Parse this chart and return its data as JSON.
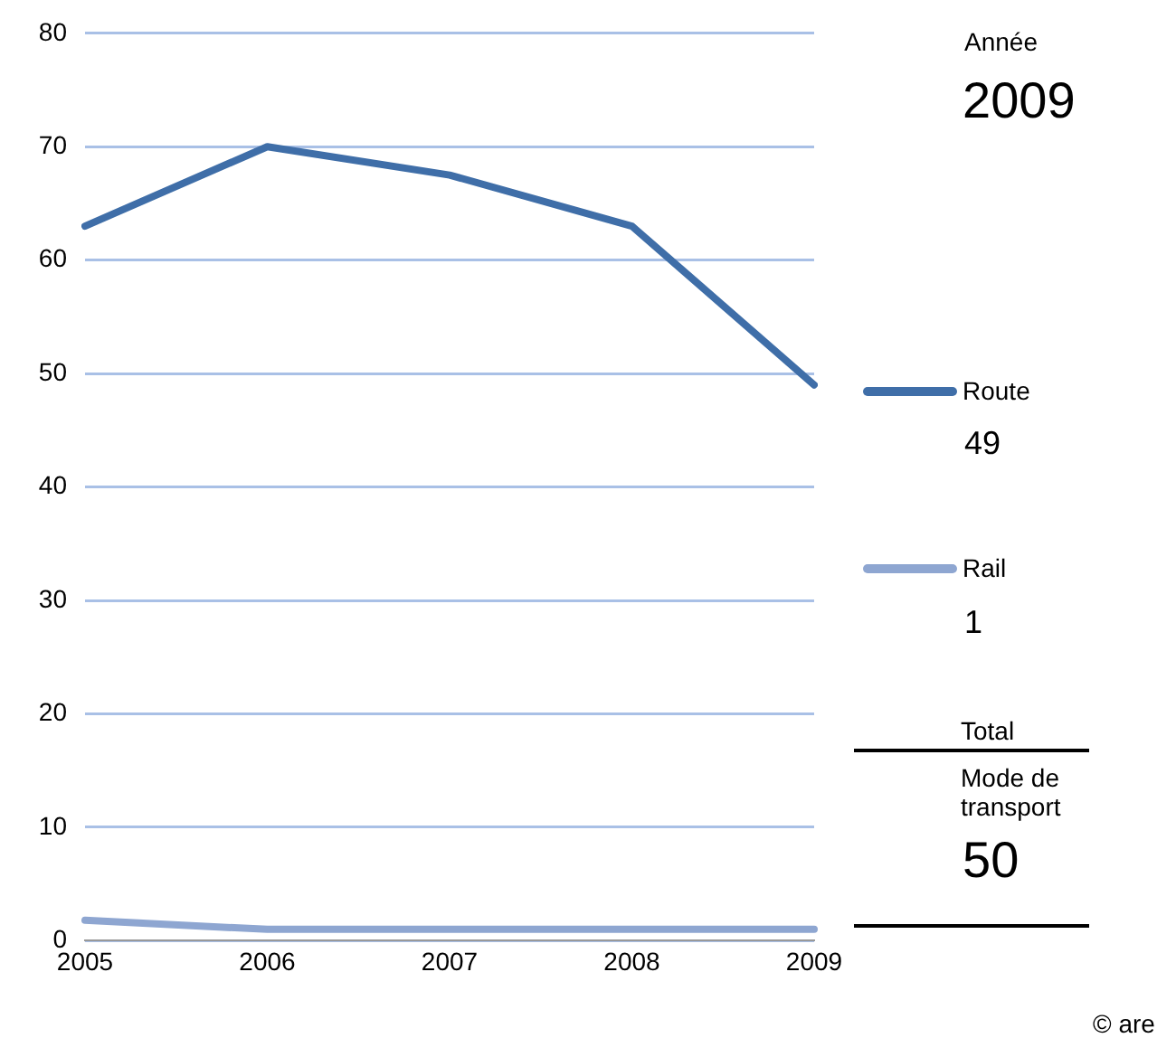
{
  "chart_data": {
    "type": "line",
    "categories": [
      "2005",
      "2006",
      "2007",
      "2008",
      "2009"
    ],
    "series": [
      {
        "name": "Route",
        "color": "#3f6ea8",
        "values": [
          63,
          70,
          67.5,
          63,
          49
        ]
      },
      {
        "name": "Rail",
        "color": "#8ea6d1",
        "values": [
          1.8,
          1,
          1,
          1,
          1
        ]
      }
    ],
    "ylim": [
      0,
      80
    ],
    "yticks": [
      0,
      10,
      20,
      30,
      40,
      50,
      60,
      70,
      80
    ],
    "grid": "y",
    "legend": "right",
    "marker": "none",
    "line_style": "solid",
    "annotations": [
      "Année",
      "2009",
      "49",
      "1",
      "Total",
      "Mode de transport",
      "50",
      "© are"
    ]
  }
}
